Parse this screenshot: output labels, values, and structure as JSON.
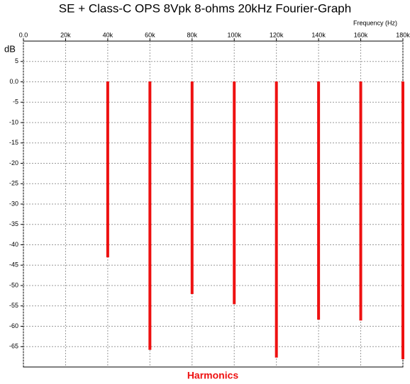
{
  "chart_data": {
    "type": "bar",
    "title": "SE + Class-C OPS 8Vpk 8-ohms 20kHz Fourier-Graph",
    "x_label": "Frequency (Hz)",
    "y_label": "dB",
    "footer": "Harmonics",
    "x": [
      20000,
      40000,
      60000,
      80000,
      100000,
      120000,
      140000,
      160000,
      180000
    ],
    "values": [
      0,
      -43,
      -65.7,
      -52,
      -54.5,
      -67.6,
      -58.3,
      -58.5,
      -68
    ],
    "color": "#ee1111",
    "xlim": [
      0,
      180000
    ],
    "xticks": [
      {
        "value": 0,
        "label": "0.0"
      },
      {
        "value": 20000,
        "label": "20k"
      },
      {
        "value": 40000,
        "label": "40k"
      },
      {
        "value": 60000,
        "label": "60k"
      },
      {
        "value": 80000,
        "label": "80k"
      },
      {
        "value": 100000,
        "label": "100k"
      },
      {
        "value": 120000,
        "label": "120k"
      },
      {
        "value": 140000,
        "label": "140k"
      },
      {
        "value": 160000,
        "label": "160k"
      },
      {
        "value": 180000,
        "label": "180k"
      }
    ],
    "ylim": [
      -70,
      10
    ],
    "yticks": [
      5,
      {
        "value": 0,
        "label": "0.0"
      },
      -5,
      -10,
      -15,
      -20,
      -25,
      -30,
      -35,
      -40,
      -45,
      -50,
      -55,
      -60,
      -65
    ],
    "grid": true
  }
}
